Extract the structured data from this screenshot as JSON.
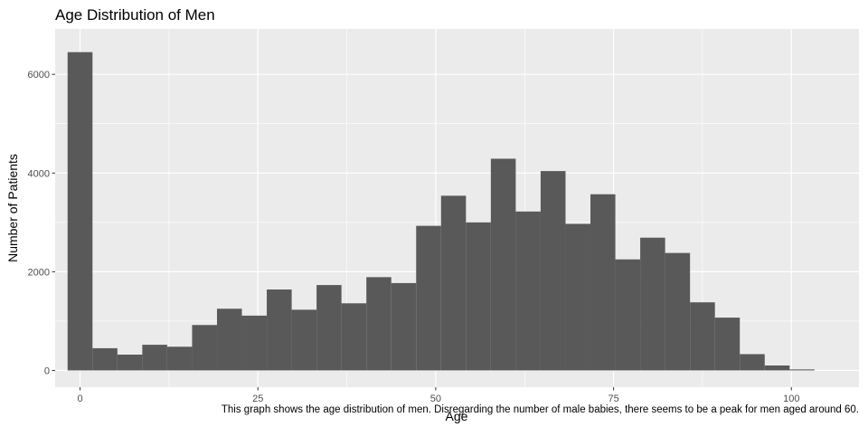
{
  "chart_data": {
    "type": "bar",
    "title": "Age Distribution of Men",
    "xlabel": "Age",
    "ylabel": "Number of Patients",
    "caption": "This graph shows the age distribution of men. Disregarding the number of male babies, there seems to be a peak for men aged around 60.",
    "bin_width": 3.5,
    "bins": [
      {
        "x": 0.0,
        "count": 6450
      },
      {
        "x": 3.5,
        "count": 450
      },
      {
        "x": 7.0,
        "count": 320
      },
      {
        "x": 10.5,
        "count": 520
      },
      {
        "x": 14.0,
        "count": 480
      },
      {
        "x": 17.5,
        "count": 920
      },
      {
        "x": 21.0,
        "count": 1250
      },
      {
        "x": 24.5,
        "count": 1110
      },
      {
        "x": 28.0,
        "count": 1640
      },
      {
        "x": 31.5,
        "count": 1230
      },
      {
        "x": 35.0,
        "count": 1730
      },
      {
        "x": 38.5,
        "count": 1360
      },
      {
        "x": 42.0,
        "count": 1890
      },
      {
        "x": 45.5,
        "count": 1770
      },
      {
        "x": 49.0,
        "count": 2930
      },
      {
        "x": 52.5,
        "count": 3540
      },
      {
        "x": 56.0,
        "count": 3000
      },
      {
        "x": 59.5,
        "count": 4290
      },
      {
        "x": 63.0,
        "count": 3220
      },
      {
        "x": 66.5,
        "count": 4040
      },
      {
        "x": 70.0,
        "count": 2970
      },
      {
        "x": 73.5,
        "count": 3570
      },
      {
        "x": 77.0,
        "count": 2250
      },
      {
        "x": 80.5,
        "count": 2690
      },
      {
        "x": 84.0,
        "count": 2380
      },
      {
        "x": 87.5,
        "count": 1380
      },
      {
        "x": 91.0,
        "count": 1070
      },
      {
        "x": 94.5,
        "count": 330
      },
      {
        "x": 98.0,
        "count": 100
      },
      {
        "x": 101.5,
        "count": 20
      }
    ],
    "xlim": [
      -3.5,
      109.5
    ],
    "ylim": [
      -340,
      6920
    ],
    "x_ticks": [
      0,
      25,
      50,
      75,
      100
    ],
    "y_ticks": [
      0,
      2000,
      4000,
      6000
    ],
    "bar_color": "#595959",
    "panel_color": "#ebebeb",
    "grid": true,
    "grid_color": "#ffffff"
  }
}
